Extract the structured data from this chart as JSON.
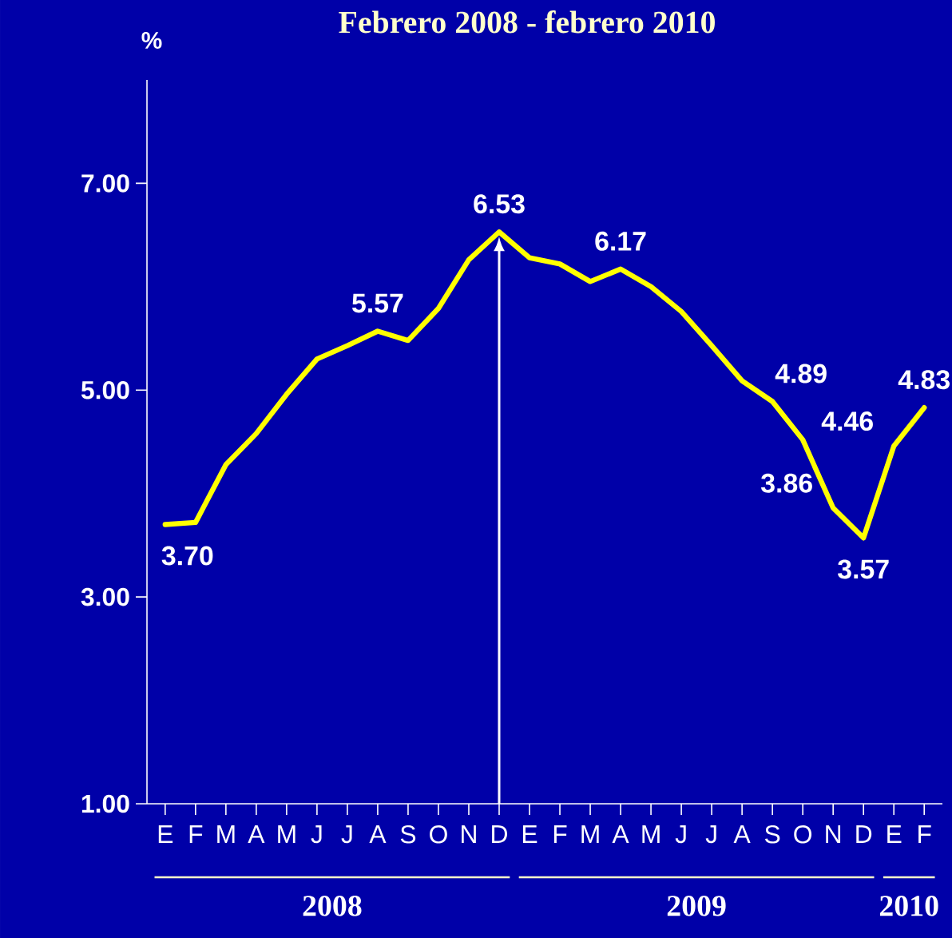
{
  "chart_data": {
    "type": "line",
    "title": "Febrero 2008 - febrero 2010",
    "ylabel": "%",
    "categories": [
      "E",
      "F",
      "M",
      "A",
      "M",
      "J",
      "J",
      "A",
      "S",
      "O",
      "N",
      "D",
      "E",
      "F",
      "M",
      "A",
      "M",
      "J",
      "J",
      "A",
      "S",
      "O",
      "N",
      "D",
      "E",
      "F"
    ],
    "values": [
      3.7,
      3.72,
      4.28,
      4.58,
      4.96,
      5.3,
      5.43,
      5.57,
      5.48,
      5.79,
      6.26,
      6.53,
      6.28,
      6.22,
      6.05,
      6.17,
      6.0,
      5.76,
      5.43,
      5.09,
      4.89,
      4.52,
      3.86,
      3.57,
      4.46,
      4.83
    ],
    "value_labels": [
      "3.70",
      null,
      null,
      null,
      null,
      null,
      null,
      "5.57",
      null,
      null,
      null,
      "6.53",
      null,
      null,
      null,
      "6.17",
      null,
      null,
      null,
      null,
      "4.89",
      null,
      "3.86",
      "3.57",
      "4.46",
      "4.83"
    ],
    "color": "#ffff00",
    "ylim": [
      1,
      8
    ],
    "yticks": [
      {
        "value": 1,
        "label": "1.00"
      },
      {
        "value": 3,
        "label": "3.00"
      },
      {
        "value": 5,
        "label": "5.00"
      },
      {
        "value": 7,
        "label": "7.00"
      }
    ],
    "annotations": [
      "2008",
      "2009",
      "2010"
    ]
  }
}
